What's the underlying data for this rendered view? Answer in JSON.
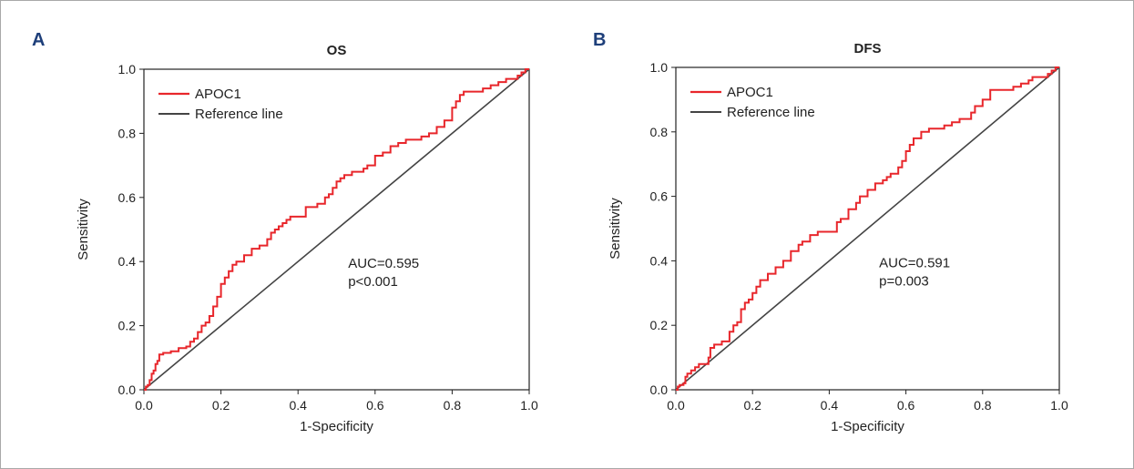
{
  "panels": [
    {
      "letter": "A",
      "title": "OS",
      "auc_text": "AUC=0.595",
      "p_text": "p<0.001",
      "legend": {
        "series_label": "APOC1",
        "reference_label": "Reference line"
      }
    },
    {
      "letter": "B",
      "title": "DFS",
      "auc_text": "AUC=0.591",
      "p_text": "p=0.003",
      "legend": {
        "series_label": "APOC1",
        "reference_label": "Reference line"
      }
    }
  ],
  "colors": {
    "roc_line": "#e8262b",
    "reference_line": "#444444",
    "axis": "#222222",
    "panel_letter": "#1e3f7a"
  },
  "chart_data": [
    {
      "type": "line",
      "title": "OS",
      "xlabel": "1-Specificity",
      "ylabel": "Sensitivity",
      "xlim": [
        0,
        1
      ],
      "ylim": [
        0,
        1
      ],
      "xticks": [
        "0.0",
        "0.2",
        "0.4",
        "0.6",
        "0.8",
        "1.0"
      ],
      "yticks": [
        "0.0",
        "0.2",
        "0.4",
        "0.6",
        "0.8",
        "1.0"
      ],
      "grid": false,
      "legend_position": "top-left",
      "series": [
        {
          "name": "APOC1",
          "x": [
            0,
            0.005,
            0.01,
            0.015,
            0.02,
            0.025,
            0.03,
            0.035,
            0.04,
            0.05,
            0.07,
            0.09,
            0.1,
            0.11,
            0.12,
            0.13,
            0.14,
            0.15,
            0.16,
            0.17,
            0.18,
            0.19,
            0.2,
            0.21,
            0.22,
            0.23,
            0.24,
            0.26,
            0.28,
            0.3,
            0.32,
            0.33,
            0.34,
            0.35,
            0.36,
            0.37,
            0.38,
            0.4,
            0.42,
            0.45,
            0.47,
            0.48,
            0.49,
            0.5,
            0.51,
            0.52,
            0.54,
            0.56,
            0.57,
            0.58,
            0.6,
            0.62,
            0.64,
            0.66,
            0.68,
            0.7,
            0.72,
            0.74,
            0.76,
            0.78,
            0.8,
            0.81,
            0.82,
            0.83,
            0.85,
            0.88,
            0.9,
            0.92,
            0.94,
            0.96,
            0.97,
            0.98,
            0.99,
            1.0
          ],
          "y": [
            0,
            0.01,
            0.015,
            0.03,
            0.05,
            0.06,
            0.08,
            0.09,
            0.11,
            0.115,
            0.12,
            0.13,
            0.13,
            0.135,
            0.15,
            0.16,
            0.18,
            0.2,
            0.21,
            0.23,
            0.26,
            0.29,
            0.33,
            0.35,
            0.37,
            0.39,
            0.4,
            0.42,
            0.44,
            0.45,
            0.47,
            0.49,
            0.5,
            0.51,
            0.52,
            0.53,
            0.54,
            0.54,
            0.57,
            0.58,
            0.6,
            0.61,
            0.63,
            0.65,
            0.66,
            0.67,
            0.68,
            0.68,
            0.69,
            0.7,
            0.73,
            0.74,
            0.76,
            0.77,
            0.78,
            0.78,
            0.79,
            0.8,
            0.82,
            0.84,
            0.88,
            0.9,
            0.92,
            0.93,
            0.93,
            0.94,
            0.95,
            0.96,
            0.97,
            0.97,
            0.98,
            0.99,
            1.0,
            1.0
          ]
        },
        {
          "name": "Reference line",
          "x": [
            0,
            1
          ],
          "y": [
            0,
            1
          ]
        }
      ]
    },
    {
      "type": "line",
      "title": "DFS",
      "xlabel": "1-Specificity",
      "ylabel": "Sensitivity",
      "xlim": [
        0,
        1
      ],
      "ylim": [
        0,
        1
      ],
      "xticks": [
        "0.0",
        "0.2",
        "0.4",
        "0.6",
        "0.8",
        "1.0"
      ],
      "yticks": [
        "0.0",
        "0.2",
        "0.4",
        "0.6",
        "0.8",
        "1.0"
      ],
      "grid": false,
      "legend_position": "top-left",
      "series": [
        {
          "name": "APOC1",
          "x": [
            0,
            0.005,
            0.01,
            0.02,
            0.025,
            0.03,
            0.04,
            0.05,
            0.06,
            0.07,
            0.08,
            0.085,
            0.09,
            0.1,
            0.12,
            0.14,
            0.15,
            0.16,
            0.17,
            0.18,
            0.19,
            0.2,
            0.21,
            0.22,
            0.24,
            0.26,
            0.28,
            0.3,
            0.32,
            0.33,
            0.35,
            0.37,
            0.4,
            0.42,
            0.43,
            0.45,
            0.47,
            0.48,
            0.5,
            0.52,
            0.54,
            0.55,
            0.56,
            0.58,
            0.59,
            0.6,
            0.61,
            0.62,
            0.64,
            0.66,
            0.7,
            0.72,
            0.74,
            0.76,
            0.77,
            0.78,
            0.8,
            0.82,
            0.84,
            0.88,
            0.9,
            0.92,
            0.93,
            0.95,
            0.97,
            0.98,
            0.99,
            1.0
          ],
          "y": [
            0,
            0.01,
            0.015,
            0.02,
            0.04,
            0.05,
            0.06,
            0.07,
            0.08,
            0.08,
            0.08,
            0.1,
            0.13,
            0.14,
            0.15,
            0.18,
            0.2,
            0.21,
            0.25,
            0.27,
            0.28,
            0.3,
            0.32,
            0.34,
            0.36,
            0.38,
            0.4,
            0.43,
            0.45,
            0.46,
            0.48,
            0.49,
            0.49,
            0.52,
            0.53,
            0.56,
            0.58,
            0.6,
            0.62,
            0.64,
            0.65,
            0.66,
            0.67,
            0.69,
            0.71,
            0.74,
            0.76,
            0.78,
            0.8,
            0.81,
            0.82,
            0.83,
            0.84,
            0.84,
            0.86,
            0.88,
            0.9,
            0.93,
            0.93,
            0.94,
            0.95,
            0.96,
            0.97,
            0.97,
            0.98,
            0.99,
            1.0,
            1.0
          ]
        },
        {
          "name": "Reference line",
          "x": [
            0,
            1
          ],
          "y": [
            0,
            1
          ]
        }
      ]
    }
  ]
}
